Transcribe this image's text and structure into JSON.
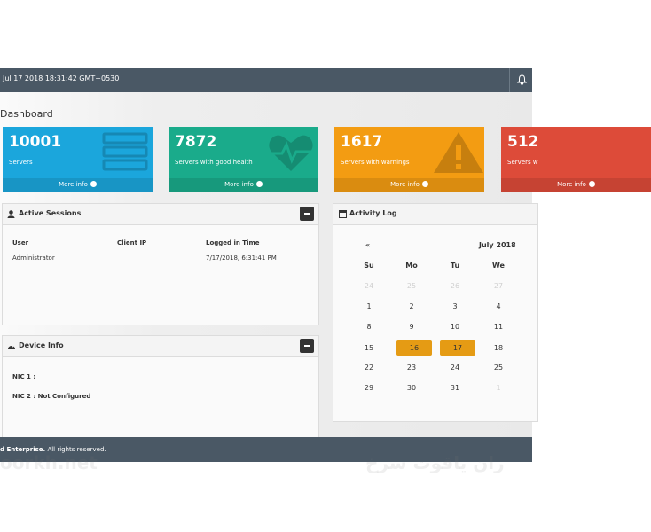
{
  "header": {
    "datetime": "Jul 17 2018 18:31:42 GMT+0530"
  },
  "page_title": "Dashboard",
  "cards": [
    {
      "value": 10001,
      "label": "Servers",
      "link": "More info",
      "color": "#1ba6dc",
      "icon": "server"
    },
    {
      "value": 7872,
      "label": "Servers with good health",
      "link": "More info",
      "color": "#1aab8b",
      "icon": "heart"
    },
    {
      "value": 1617,
      "label": "Servers with warnings",
      "link": "More info",
      "color": "#f39c12",
      "icon": "warning"
    },
    {
      "value": 512,
      "label": "Servers w",
      "link": "More info",
      "color": "#dd4b39",
      "icon": "none"
    }
  ],
  "sessions": {
    "title": "Active Sessions",
    "columns": [
      "User",
      "Client IP",
      "Logged in Time"
    ],
    "rows": [
      {
        "user": "Administrator",
        "logged_in_time": "7/17/2018, 6:31:41 PM"
      }
    ]
  },
  "device_info": {
    "title": "Device Info",
    "items": [
      "NIC 1 :",
      "NIC 2 : Not Configured"
    ]
  },
  "activity_log": {
    "title": "Activity Log",
    "prev": "«",
    "month": "July 2018",
    "weekdays": [
      "Su",
      "Mo",
      "Tu",
      "We"
    ],
    "weeks": [
      [
        {
          "day": 24,
          "state": "other"
        },
        {
          "day": 25,
          "state": "other"
        },
        {
          "day": 26,
          "state": "other"
        },
        {
          "day": 27,
          "state": "other"
        }
      ],
      [
        {
          "day": 1
        },
        {
          "day": 2
        },
        {
          "day": 3
        },
        {
          "day": 4
        }
      ],
      [
        {
          "day": 8
        },
        {
          "day": 9
        },
        {
          "day": 10
        },
        {
          "day": 11
        }
      ],
      [
        {
          "day": 15
        },
        {
          "day": 16,
          "state": "selected"
        },
        {
          "day": 17,
          "state": "selected"
        },
        {
          "day": 18
        }
      ],
      [
        {
          "day": 22
        },
        {
          "day": 23
        },
        {
          "day": 24
        },
        {
          "day": 25
        }
      ],
      [
        {
          "day": 29
        },
        {
          "day": 30
        },
        {
          "day": 31
        },
        {
          "day": 1,
          "state": "other"
        }
      ]
    ]
  },
  "footer": {
    "company": "d Enterprise.",
    "rights": "All rights reserved."
  },
  "watermark": [
    "oorkh.net",
    "ران یاقوت سرخ"
  ]
}
